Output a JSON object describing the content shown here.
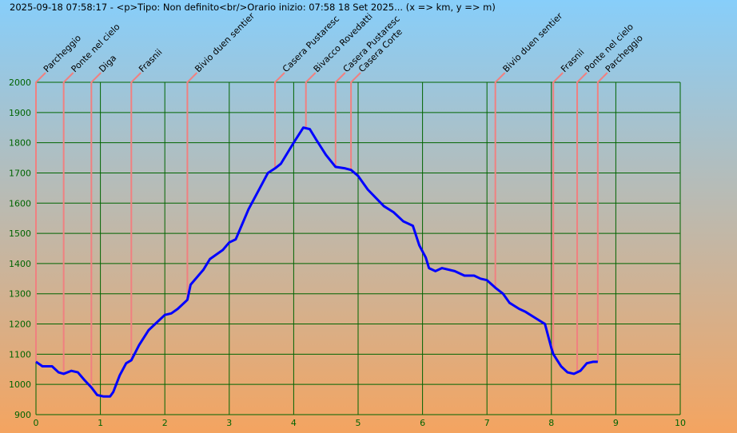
{
  "chart_data": {
    "type": "line",
    "title": "2025-09-18 07:58:17 - <p>Tipo: Non definito<br/>Orario inizio: 07:58 18 Set 2025... (x => km, y => m)",
    "xlim": [
      0,
      10
    ],
    "ylim": [
      900,
      2000
    ],
    "xticks": [
      0,
      1,
      2,
      3,
      4,
      5,
      6,
      7,
      8,
      9,
      10
    ],
    "yticks": [
      900,
      1000,
      1100,
      1200,
      1300,
      1400,
      1500,
      1600,
      1700,
      1800,
      1900,
      2000
    ],
    "grid": true,
    "colors": {
      "line": "#0000ff",
      "grid": "#006400",
      "waypoint": "#f08080",
      "tick_label": "#006400"
    },
    "series": [
      {
        "x": [
          0,
          0.1,
          0.25,
          0.35,
          0.43,
          0.55,
          0.65,
          0.75,
          0.86,
          0.95,
          1.05,
          1.15,
          1.2,
          1.3,
          1.4,
          1.48,
          1.6,
          1.75,
          1.9,
          2.0,
          2.1,
          2.2,
          2.35,
          2.4,
          2.6,
          2.7,
          2.9,
          3.0,
          3.1,
          3.2,
          3.3,
          3.45,
          3.6,
          3.71,
          3.8,
          4.0,
          4.15,
          4.25,
          4.35,
          4.5,
          4.65,
          4.8,
          4.89,
          5.0,
          5.15,
          5.4,
          5.55,
          5.7,
          5.85,
          5.95,
          6.05,
          6.1,
          6.2,
          6.3,
          6.5,
          6.65,
          6.8,
          6.9,
          7.0,
          7.13,
          7.25,
          7.35,
          7.5,
          7.6,
          7.75,
          7.9,
          8.0,
          8.03,
          8.15,
          8.25,
          8.35,
          8.45,
          8.55,
          8.65,
          8.72
        ],
        "y": [
          1075,
          1060,
          1060,
          1040,
          1035,
          1045,
          1040,
          1015,
          990,
          965,
          960,
          960,
          975,
          1030,
          1070,
          1080,
          1130,
          1180,
          1210,
          1230,
          1235,
          1250,
          1280,
          1330,
          1380,
          1415,
          1445,
          1470,
          1480,
          1530,
          1580,
          1640,
          1700,
          1715,
          1730,
          1800,
          1850,
          1845,
          1810,
          1760,
          1720,
          1715,
          1710,
          1690,
          1645,
          1590,
          1570,
          1540,
          1525,
          1460,
          1420,
          1385,
          1375,
          1385,
          1375,
          1360,
          1360,
          1350,
          1345,
          1320,
          1300,
          1270,
          1250,
          1240,
          1220,
          1200,
          1120,
          1100,
          1060,
          1040,
          1035,
          1045,
          1070,
          1075,
          1075
        ]
      }
    ],
    "waypoints": [
      {
        "km": 0,
        "label": "Parcheggio"
      },
      {
        "km": 0.43,
        "label": "Ponte nel cielo"
      },
      {
        "km": 0.86,
        "label": "Diga"
      },
      {
        "km": 1.48,
        "label": "Frasnii"
      },
      {
        "km": 2.35,
        "label": "Bivio duen sentier"
      },
      {
        "km": 3.71,
        "label": "Casera Pustaresc"
      },
      {
        "km": 4.19,
        "label": "Bivacco Rovedatti"
      },
      {
        "km": 4.65,
        "label": "Casera Pustaresc"
      },
      {
        "km": 4.89,
        "label": "Casera Corte"
      },
      {
        "km": 7.13,
        "label": "Bivio duen sentier"
      },
      {
        "km": 8.03,
        "label": "Frasnii"
      },
      {
        "km": 8.4,
        "label": "Ponte nel cielo"
      },
      {
        "km": 8.72,
        "label": "Parcheggio"
      }
    ]
  }
}
